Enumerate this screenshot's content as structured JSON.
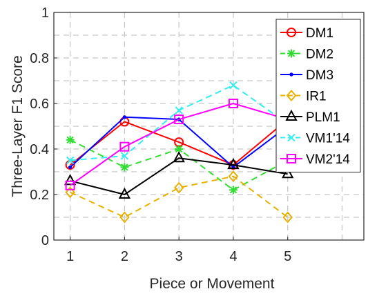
{
  "chart_data": {
    "type": "line",
    "title": "",
    "xlabel": "Piece or Movement",
    "ylabel": "Three-Layer F1 Score",
    "x": [
      1,
      2,
      3,
      4,
      5
    ],
    "xticks": [
      "1",
      "2",
      "3",
      "4",
      "5"
    ],
    "yticks": [
      "0",
      "0.2",
      "0.4",
      "0.6",
      "0.8",
      "1"
    ],
    "xlim": [
      0.7,
      6.4
    ],
    "ylim": [
      0,
      1
    ],
    "grid": true,
    "legend_position": "top-right",
    "series": [
      {
        "name": "DM1",
        "values": [
          0.33,
          0.52,
          0.43,
          0.33,
          0.53
        ],
        "color": "#ff0000",
        "dash": "solid",
        "marker": "circle"
      },
      {
        "name": "DM2",
        "values": [
          0.44,
          0.32,
          0.4,
          0.22,
          0.35
        ],
        "color": "#33dd33",
        "dash": "dashed",
        "marker": "asterisk"
      },
      {
        "name": "DM3",
        "values": [
          0.32,
          0.54,
          0.53,
          0.32,
          0.5
        ],
        "color": "#0000ff",
        "dash": "solid",
        "marker": "dot"
      },
      {
        "name": "IR1",
        "values": [
          0.21,
          0.1,
          0.23,
          0.28,
          0.1
        ],
        "color": "#e8b000",
        "dash": "dashed",
        "marker": "diamond"
      },
      {
        "name": "PLM1",
        "values": [
          0.26,
          0.2,
          0.36,
          0.33,
          0.29
        ],
        "color": "#000000",
        "dash": "solid",
        "marker": "triangle"
      },
      {
        "name": "VM1'14",
        "values": [
          0.35,
          0.37,
          0.57,
          0.68,
          0.51
        ],
        "color": "#33eeee",
        "dash": "dashed",
        "marker": "x"
      },
      {
        "name": "VM2'14",
        "values": [
          0.24,
          0.41,
          0.53,
          0.6,
          0.53
        ],
        "color": "#ff00ff",
        "dash": "solid",
        "marker": "square"
      }
    ]
  }
}
